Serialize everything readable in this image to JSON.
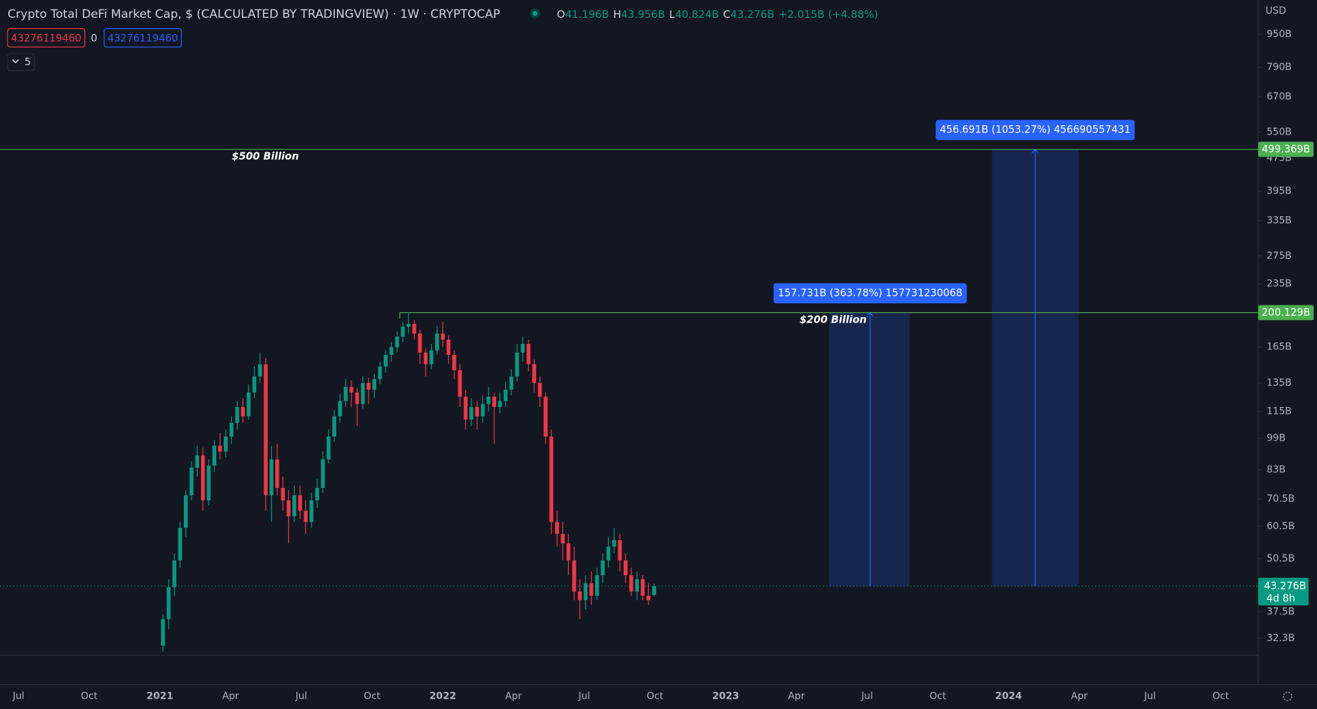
{
  "chart_data": {
    "type": "candlestick",
    "title": "Crypto Total DeFi Market Cap, $ (CALCULATED BY TRADINGVIEW) · 1W · CRYPTOCAP",
    "legend_ohlc": [
      {
        "label": "O",
        "value": "41.196B"
      },
      {
        "label": "H",
        "value": "43.956B"
      },
      {
        "label": "L",
        "value": "40.824B"
      },
      {
        "label": "C",
        "value": "43.276B"
      }
    ],
    "change": "+2.015B (+4.88%)",
    "pills": [
      "43276119460",
      "0",
      "43276119460"
    ],
    "indicator_count": "5",
    "currency": "USD",
    "up_color": "#089981",
    "down_color": "#f23645",
    "log_scale": true,
    "ylim": [
      29.4,
      1152
    ],
    "yticks": [
      {
        "value": 950,
        "label": "950B"
      },
      {
        "value": 790,
        "label": "790B"
      },
      {
        "value": 670,
        "label": "670B"
      },
      {
        "value": 550,
        "label": "550B"
      },
      {
        "value": 475,
        "label": "475B"
      },
      {
        "value": 395,
        "label": "395B"
      },
      {
        "value": 335,
        "label": "335B"
      },
      {
        "value": 275,
        "label": "275B"
      },
      {
        "value": 235,
        "label": "235B"
      },
      {
        "value": 165,
        "label": "165B"
      },
      {
        "value": 135,
        "label": "135B"
      },
      {
        "value": 115,
        "label": "115B"
      },
      {
        "value": 99,
        "label": "99B"
      },
      {
        "value": 83,
        "label": "83B"
      },
      {
        "value": 70.5,
        "label": "70.5B"
      },
      {
        "value": 60.5,
        "label": "60.5B"
      },
      {
        "value": 50.5,
        "label": "50.5B"
      },
      {
        "value": 37.5,
        "label": "37.5B"
      },
      {
        "value": 32.3,
        "label": "32.3B"
      }
    ],
    "x_labels": [
      "Jul",
      "Oct",
      "2021",
      "Apr",
      "Jul",
      "Oct",
      "2022",
      "Apr",
      "Jul",
      "Oct",
      "2023",
      "Apr",
      "Jul",
      "Oct",
      "2024",
      "Apr",
      "Jul",
      "Oct"
    ],
    "ohlc": [
      [
        31,
        37,
        30,
        36
      ],
      [
        36,
        45,
        34,
        43
      ],
      [
        43,
        52,
        41,
        50
      ],
      [
        50,
        62,
        48,
        60
      ],
      [
        60,
        74,
        57,
        72
      ],
      [
        72,
        87,
        70,
        84
      ],
      [
        84,
        95,
        80,
        90
      ],
      [
        90,
        94,
        66,
        70
      ],
      [
        70,
        88,
        68,
        85
      ],
      [
        85,
        98,
        82,
        95
      ],
      [
        95,
        102,
        88,
        92
      ],
      [
        92,
        104,
        89,
        100
      ],
      [
        100,
        112,
        96,
        108
      ],
      [
        108,
        122,
        104,
        118
      ],
      [
        118,
        124,
        108,
        112
      ],
      [
        112,
        134,
        110,
        128
      ],
      [
        128,
        148,
        124,
        140
      ],
      [
        140,
        160,
        135,
        150
      ],
      [
        150,
        155,
        66,
        72
      ],
      [
        72,
        95,
        62,
        88
      ],
      [
        88,
        96,
        72,
        75
      ],
      [
        75,
        80,
        66,
        70
      ],
      [
        70,
        74,
        55,
        64
      ],
      [
        64,
        76,
        62,
        72
      ],
      [
        72,
        76,
        63,
        66
      ],
      [
        66,
        70,
        58,
        62
      ],
      [
        62,
        73,
        60,
        70
      ],
      [
        70,
        79,
        67,
        75
      ],
      [
        75,
        92,
        73,
        88
      ],
      [
        88,
        104,
        86,
        100
      ],
      [
        100,
        116,
        97,
        112
      ],
      [
        112,
        127,
        108,
        122
      ],
      [
        122,
        138,
        118,
        132
      ],
      [
        132,
        137,
        118,
        128
      ],
      [
        128,
        131,
        106,
        120
      ],
      [
        120,
        140,
        117,
        135
      ],
      [
        135,
        139,
        120,
        130
      ],
      [
        130,
        142,
        124,
        138
      ],
      [
        138,
        152,
        134,
        148
      ],
      [
        148,
        162,
        143,
        158
      ],
      [
        158,
        170,
        152,
        165
      ],
      [
        165,
        180,
        160,
        175
      ],
      [
        175,
        190,
        170,
        185
      ],
      [
        185,
        200,
        178,
        188
      ],
      [
        188,
        192,
        172,
        178
      ],
      [
        178,
        182,
        150,
        160
      ],
      [
        160,
        164,
        140,
        150
      ],
      [
        150,
        168,
        146,
        162
      ],
      [
        162,
        186,
        158,
        178
      ],
      [
        178,
        190,
        165,
        172
      ],
      [
        172,
        176,
        150,
        158
      ],
      [
        158,
        162,
        138,
        145
      ],
      [
        145,
        150,
        118,
        125
      ],
      [
        125,
        130,
        104,
        110
      ],
      [
        110,
        124,
        106,
        118
      ],
      [
        118,
        122,
        104,
        112
      ],
      [
        112,
        126,
        108,
        120
      ],
      [
        120,
        132,
        115,
        125
      ],
      [
        125,
        128,
        96,
        118
      ],
      [
        118,
        128,
        114,
        122
      ],
      [
        122,
        136,
        118,
        130
      ],
      [
        130,
        146,
        126,
        140
      ],
      [
        140,
        168,
        136,
        160
      ],
      [
        160,
        175,
        152,
        168
      ],
      [
        168,
        172,
        144,
        150
      ],
      [
        150,
        154,
        128,
        135
      ],
      [
        135,
        140,
        118,
        125
      ],
      [
        125,
        128,
        96,
        100
      ],
      [
        100,
        104,
        58,
        62
      ],
      [
        62,
        66,
        54,
        58
      ],
      [
        58,
        62,
        50,
        55
      ],
      [
        55,
        58,
        46,
        50
      ],
      [
        50,
        54,
        40,
        42
      ],
      [
        42,
        45,
        36,
        40
      ],
      [
        40,
        46,
        38,
        44
      ],
      [
        44,
        47,
        39,
        41
      ],
      [
        41,
        48,
        40,
        46
      ],
      [
        46,
        52,
        44,
        50
      ],
      [
        50,
        57,
        48,
        54
      ],
      [
        54,
        60,
        52,
        56
      ],
      [
        56,
        58,
        47,
        50
      ],
      [
        50,
        52,
        44,
        46
      ],
      [
        46,
        48,
        41,
        42
      ],
      [
        42,
        47,
        40,
        45
      ],
      [
        45,
        46,
        40,
        41
      ],
      [
        41,
        44,
        39,
        40
      ],
      [
        41.196,
        43.956,
        40.824,
        43.276
      ]
    ],
    "last_price": {
      "value": 43.276,
      "label": "43.276B",
      "countdown": "4d 8h"
    },
    "levels": [
      {
        "value": 499.369,
        "label": "499.369B",
        "annotation": "$500 Billion",
        "color": "#4caf50"
      },
      {
        "value": 200.129,
        "label": "200.129B",
        "annotation": "$200 Billion",
        "color": "#4caf50"
      }
    ],
    "measures": [
      {
        "text": "157.731B (363.78%) 157731230068",
        "level": 1
      },
      {
        "text": "456.691B (1053.27%) 456690557431",
        "level": 0
      }
    ]
  }
}
